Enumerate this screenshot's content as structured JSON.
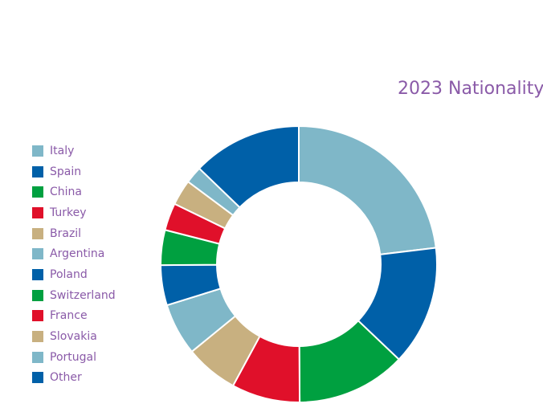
{
  "chart_data": {
    "type": "pie",
    "variant": "donut",
    "title": "2023 Nationality",
    "legend_position": "left",
    "categories": [
      "Italy",
      "Spain",
      "China",
      "Turkey",
      "Brazil",
      "Argentina",
      "Poland",
      "Switzerland",
      "France",
      "Slovakia",
      "Portugal",
      "Other"
    ],
    "values": [
      23.1,
      14.0,
      12.8,
      8.0,
      6.2,
      6.1,
      4.7,
      4.1,
      3.2,
      3.0,
      2.0,
      12.8
    ],
    "colors": [
      "#7fb7c8",
      "#0060a8",
      "#00a040",
      "#e0102a",
      "#c8b080",
      "#7fb7c8",
      "#0060a8",
      "#00a040",
      "#e0102a",
      "#c8b080",
      "#7fb7c8",
      "#0060a8"
    ]
  }
}
